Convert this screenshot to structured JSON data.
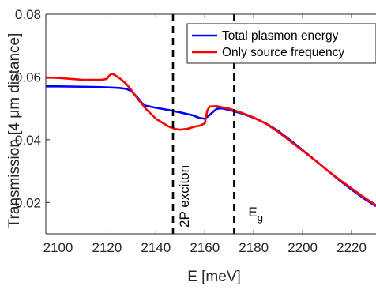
{
  "chart_data": {
    "type": "line",
    "title": "",
    "xlabel": "E [meV]",
    "ylabel": "Transmission [4 μm distance]",
    "xlim": [
      2095,
      2230
    ],
    "ylim": [
      0.01,
      0.08
    ],
    "xticks": [
      2100,
      2120,
      2140,
      2160,
      2180,
      2200,
      2220
    ],
    "yticks": [
      0.02,
      0.04,
      0.06,
      0.08
    ],
    "ytick_labels": [
      "0.02",
      "0.04",
      "0.06",
      "0.08"
    ],
    "grid": false,
    "legend_position": "top-right",
    "series": [
      {
        "name": "Total plasmon energy",
        "color": "#0000ff",
        "x": [
          2095,
          2100,
          2110,
          2120,
          2125,
          2128,
          2130,
          2133,
          2135,
          2140,
          2145,
          2150,
          2155,
          2158,
          2160,
          2162,
          2164,
          2165,
          2167,
          2170,
          2175,
          2180,
          2185,
          2190,
          2195,
          2200,
          2205,
          2210,
          2215,
          2220,
          2225,
          2230
        ],
        "y": [
          0.057,
          0.057,
          0.0569,
          0.0567,
          0.0565,
          0.0562,
          0.0555,
          0.053,
          0.051,
          0.0502,
          0.0495,
          0.0487,
          0.0478,
          0.0469,
          0.0467,
          0.0479,
          0.0493,
          0.0499,
          0.05,
          0.0495,
          0.0484,
          0.047,
          0.0452,
          0.0428,
          0.0398,
          0.0367,
          0.0335,
          0.0303,
          0.0271,
          0.0241,
          0.0213,
          0.0188
        ]
      },
      {
        "name": "Only source frequency",
        "color": "#ff0000",
        "x": [
          2095,
          2100,
          2105,
          2110,
          2115,
          2118,
          2120,
          2121,
          2122,
          2123,
          2124,
          2125,
          2126,
          2128,
          2130,
          2133,
          2136,
          2140,
          2145,
          2148,
          2150,
          2153,
          2156,
          2158,
          2160,
          2161,
          2162,
          2165,
          2168,
          2170,
          2175,
          2180,
          2185,
          2190,
          2195,
          2200,
          2205,
          2210,
          2215,
          2220,
          2225,
          2230
        ],
        "y": [
          0.0598,
          0.0597,
          0.0594,
          0.0591,
          0.0591,
          0.0591,
          0.0594,
          0.0605,
          0.061,
          0.0607,
          0.0602,
          0.0597,
          0.0591,
          0.0577,
          0.0558,
          0.0526,
          0.0498,
          0.0467,
          0.0443,
          0.0434,
          0.0432,
          0.0435,
          0.0442,
          0.0445,
          0.0452,
          0.0493,
          0.0506,
          0.0507,
          0.0502,
          0.0499,
          0.0486,
          0.0471,
          0.0451,
          0.0425,
          0.0395,
          0.0365,
          0.0335,
          0.0303,
          0.0273,
          0.0245,
          0.0217,
          0.0191
        ]
      }
    ],
    "vlines": [
      {
        "x": 2147,
        "label": "2P exciton",
        "style": "dashed",
        "color": "#000000"
      },
      {
        "x": 2172,
        "label": "E",
        "subscript": "g",
        "style": "dashed",
        "color": "#000000"
      }
    ]
  }
}
